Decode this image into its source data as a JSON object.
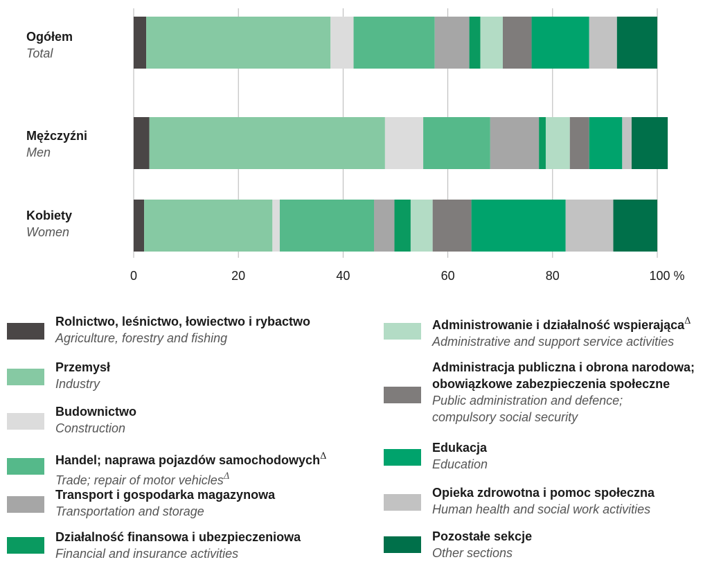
{
  "chart_data": {
    "type": "bar",
    "orientation": "horizontal",
    "stacked": true,
    "unit": "%",
    "xlim": [
      0,
      100
    ],
    "x_ticks": [
      "0",
      "20",
      "40",
      "60",
      "80",
      "100 %"
    ],
    "grid": true,
    "rows": [
      {
        "label": "Ogółem",
        "label_en": "Total",
        "values": [
          2.4,
          35.2,
          4.4,
          15.5,
          6.6,
          2.1,
          4.3,
          5.5,
          11.0,
          5.3,
          7.7
        ]
      },
      {
        "label": "Mężczyźni",
        "label_en": "Men",
        "values": [
          3.0,
          45.0,
          7.3,
          12.8,
          9.3,
          1.3,
          4.6,
          3.7,
          6.3,
          1.8,
          6.9
        ]
      },
      {
        "label": "Kobiety",
        "label_en": "Women",
        "values": [
          2.0,
          24.5,
          1.4,
          18.0,
          3.9,
          3.1,
          4.2,
          7.4,
          18.0,
          9.1,
          8.4
        ]
      }
    ],
    "series": [
      {
        "name": "Rolnictwo, leśnictwo, łowiectwo i rybactwo",
        "name_en": "Agriculture, forestry and fishing",
        "color": "#4a4646"
      },
      {
        "name": "Przemysł",
        "name_en": "Industry",
        "color": "#86c9a3"
      },
      {
        "name": "Budownictwo",
        "name_en": "Construction",
        "color": "#dcdcdc"
      },
      {
        "name": "Handel; naprawa pojazdów samochodowych",
        "name_en": "Trade; repair of motor vehicles",
        "mark": "Δ",
        "mark_en": "Δ",
        "color": "#55b98a"
      },
      {
        "name": "Transport i gospodarka magazynowa",
        "name_en": "Transportation and storage",
        "color": "#a6a6a6"
      },
      {
        "name": "Działalność finansowa i ubezpieczeniowa",
        "name_en": "Financial and insurance activities",
        "color": "#0a9a60"
      },
      {
        "name": "Administrowanie i działalność wspierająca",
        "name_en": "Administrative and support service activities",
        "mark": "Δ",
        "color": "#b3dcc5"
      },
      {
        "name": "Administracja publiczna i obrona narodowa;",
        "name_line2": "obowiązkowe zabezpieczenia społeczne",
        "name_en": "Public administration and defence;",
        "name_en_line2": "compulsory social security",
        "color": "#7f7c7b"
      },
      {
        "name": "Edukacja",
        "name_en": "Education",
        "color": "#00a36c"
      },
      {
        "name": "Opieka zdrowotna i pomoc społeczna",
        "name_en": "Human health and social work activities",
        "color": "#c2c2c2"
      },
      {
        "name": "Pozostałe sekcje",
        "name_en": "Other sections",
        "color": "#00704a"
      }
    ]
  }
}
